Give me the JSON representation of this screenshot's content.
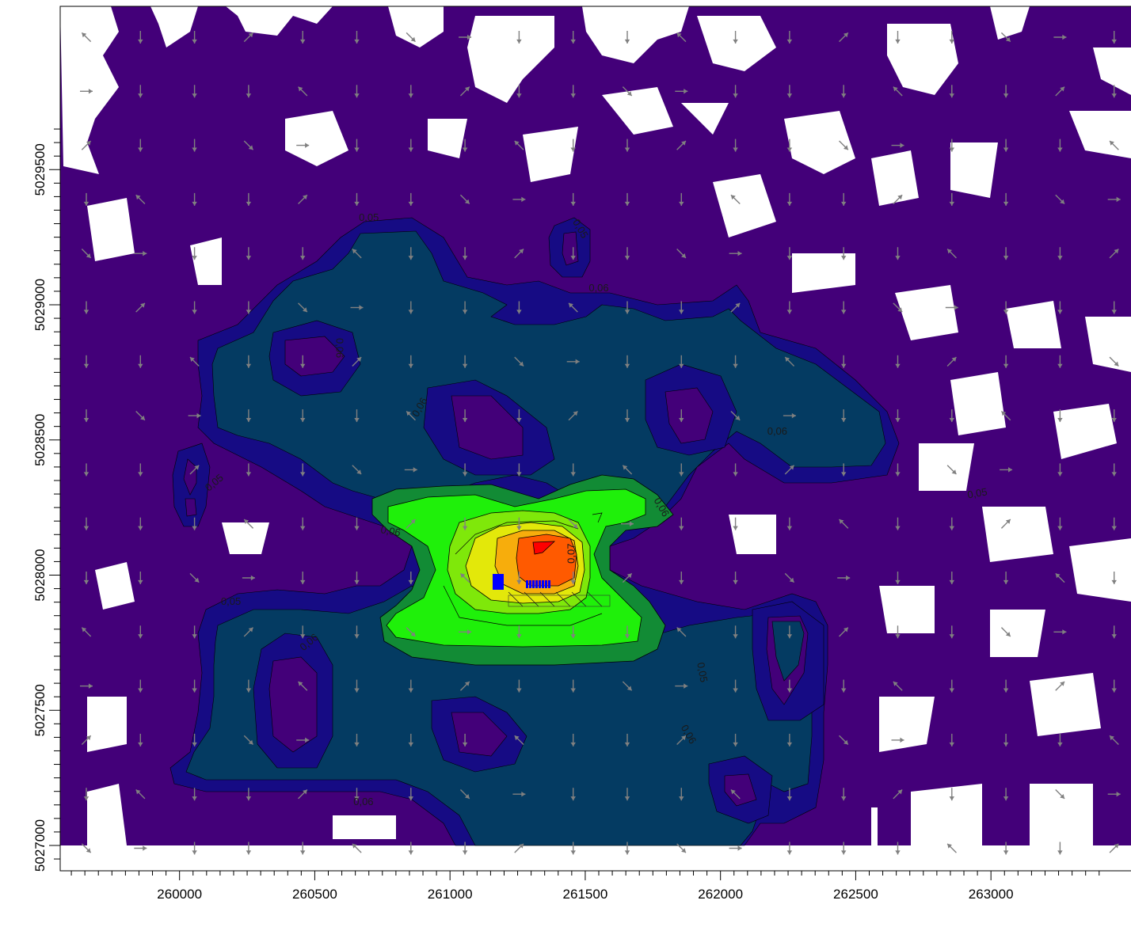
{
  "chart_data": {
    "type": "contour",
    "title": "",
    "xlabel": "",
    "ylabel": "",
    "xlim": [
      259550,
      263450
    ],
    "ylim": [
      5026880,
      5029650
    ],
    "x_ticks": [
      "260000",
      "260500",
      "261000",
      "261500",
      "262000",
      "262500",
      "263000"
    ],
    "y_ticks": [
      "5027000",
      "5027500",
      "5028000",
      "5028500",
      "5029000",
      "5029500"
    ],
    "contour_labels": [
      {
        "text": "0,05",
        "x": 260700,
        "y": 5029320
      },
      {
        "text": "0,05",
        "x": 261480,
        "y": 5029280
      },
      {
        "text": "0,06",
        "x": 261550,
        "y": 5029060
      },
      {
        "text": "0,06",
        "x": 260590,
        "y": 5028840
      },
      {
        "text": "0,06",
        "x": 260890,
        "y": 5028620
      },
      {
        "text": "0,06",
        "x": 262210,
        "y": 5028530
      },
      {
        "text": "0,05",
        "x": 260130,
        "y": 5028340
      },
      {
        "text": "0,05",
        "x": 262950,
        "y": 5028300
      },
      {
        "text": "0,06",
        "x": 261780,
        "y": 5028250
      },
      {
        "text": "0,06",
        "x": 260780,
        "y": 5028160
      },
      {
        "text": "0,07",
        "x": 261450,
        "y": 5028080
      },
      {
        "text": "0,05",
        "x": 260190,
        "y": 5027900
      },
      {
        "text": "0,06",
        "x": 260480,
        "y": 5027750
      },
      {
        "text": "0,05",
        "x": 261930,
        "y": 5027640
      },
      {
        "text": "0,06",
        "x": 261880,
        "y": 5027410
      },
      {
        "text": "0,06",
        "x": 260680,
        "y": 5027160
      }
    ],
    "colors": {
      "purple": "#430079",
      "navy": "#160b84",
      "teal": "#043b62",
      "dark_green": "#128b35",
      "green": "#1ff00a",
      "lime": "#7fe80a",
      "yellow": "#e3e80a",
      "orange_light": "#f7ad0c",
      "orange": "#ff5a00",
      "red": "#ff0000",
      "source": "#0000ff",
      "arrow": "#808080"
    },
    "wind_field": "grid of grey wind direction arrows, mostly pointing south (down)"
  }
}
